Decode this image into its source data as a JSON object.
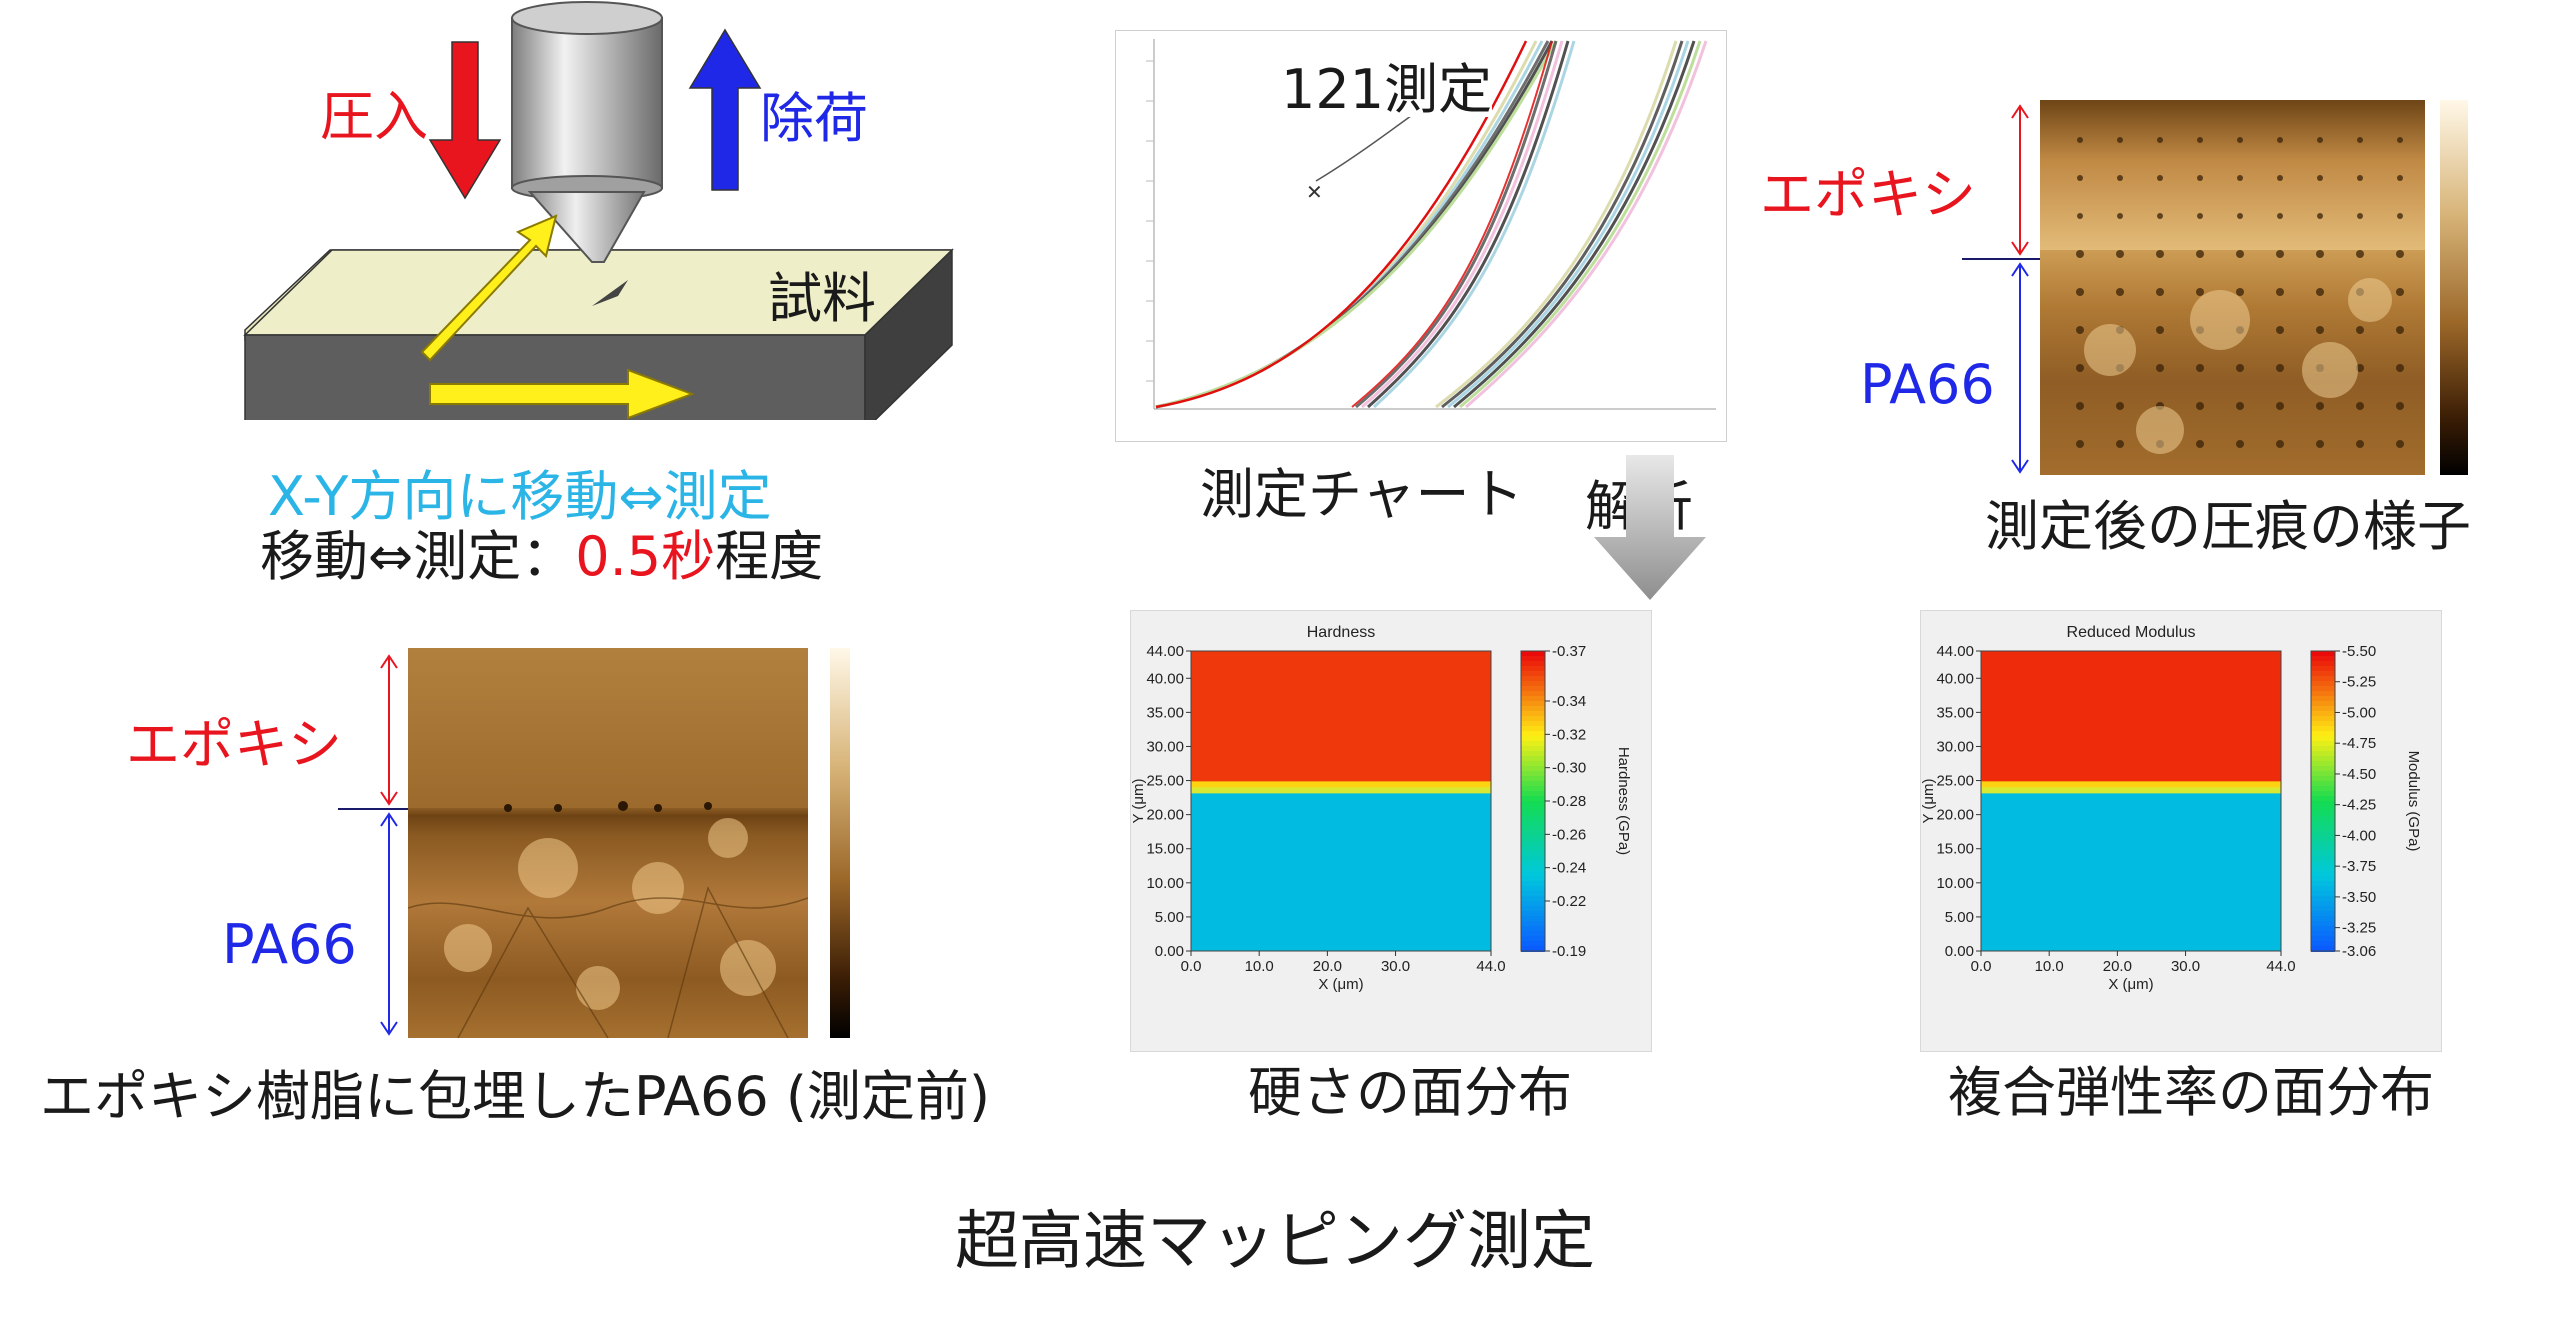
{
  "colors": {
    "red": "#e8141e",
    "blue": "#1e28e6",
    "cyan": "#2ab5e6",
    "yellow": "#ffef1a",
    "bar_top": "#e60000",
    "bar_bottom": "#0a5cff"
  },
  "indenter": {
    "press_label": "圧入",
    "unload_label": "除荷",
    "sample_label": "試料",
    "move_caption": "X-Y方向に移動⇔測定",
    "time_caption_prefix": "移動⇔測定：",
    "time_caption_value": "0.5秒",
    "time_caption_suffix": "程度"
  },
  "curve_chart": {
    "annotation": "121測定",
    "caption": "測定チャート",
    "analysis_label": "解析"
  },
  "after_image": {
    "layer_top": "エポキシ",
    "layer_bottom": "PA66",
    "caption": "測定後の圧痕の様子"
  },
  "before_image": {
    "layer_top": "エポキシ",
    "layer_bottom": "PA66",
    "caption": "エポキシ樹脂に包埋したPA66 (測定前)"
  },
  "hardness_map": {
    "caption": "硬さの面分布",
    "chart_data": {
      "type": "heatmap",
      "title": "Hardness",
      "xlabel": "X (μm)",
      "ylabel": "Y (μm)",
      "colorbar_label": "Hardness (GPa)",
      "xlim": [
        0,
        44
      ],
      "ylim": [
        0,
        44
      ],
      "xticks": [
        "0.0",
        "10.0",
        "20.0",
        "30.0",
        "44.0"
      ],
      "yticks": [
        "0.00",
        "5.00",
        "10.00",
        "15.00",
        "20.00",
        "25.00",
        "30.00",
        "35.00",
        "40.00",
        "44.00"
      ],
      "colorbar_ticks": [
        "0.37",
        "0.34",
        "0.32",
        "0.30",
        "0.28",
        "0.26",
        "0.24",
        "0.22",
        "0.19"
      ],
      "colorbar_range": [
        0.19,
        0.37
      ],
      "interface_y": 24,
      "region_values": {
        "epoxy": 0.36,
        "pa66": 0.23
      }
    }
  },
  "modulus_map": {
    "caption": "複合弾性率の面分布",
    "chart_data": {
      "type": "heatmap",
      "title": "Reduced Modulus",
      "xlabel": "X (μm)",
      "ylabel": "Y (μm)",
      "colorbar_label": "Modulus (GPa)",
      "xlim": [
        0,
        44
      ],
      "ylim": [
        0,
        44
      ],
      "xticks": [
        "0.0",
        "10.0",
        "20.0",
        "30.0",
        "44.0"
      ],
      "yticks": [
        "0.00",
        "5.00",
        "10.00",
        "15.00",
        "20.00",
        "25.00",
        "30.00",
        "35.00",
        "40.00",
        "44.00"
      ],
      "colorbar_ticks": [
        "5.50",
        "5.25",
        "5.00",
        "4.75",
        "4.50",
        "4.25",
        "4.00",
        "3.75",
        "3.50",
        "3.25",
        "3.06"
      ],
      "colorbar_range": [
        3.06,
        5.5
      ],
      "interface_y": 24,
      "region_values": {
        "epoxy": 5.4,
        "pa66": 3.6
      }
    }
  },
  "footer_title": "超高速マッピング測定"
}
